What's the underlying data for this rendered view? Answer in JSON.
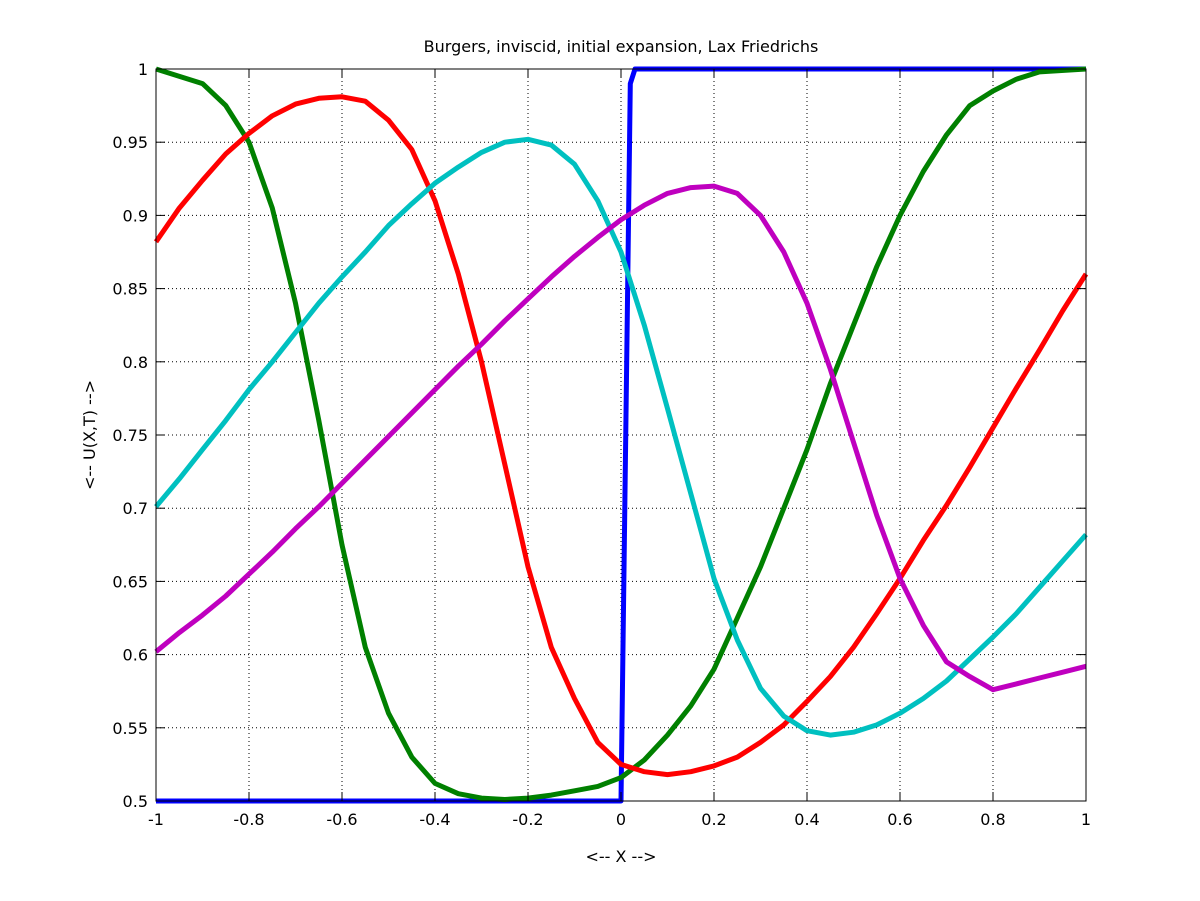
{
  "chart_data": {
    "type": "line",
    "title": "Burgers, inviscid, initial expansion, Lax Friedrichs",
    "xlabel": "<-- X -->",
    "ylabel": "<-- U(X,T) -->",
    "xlim": [
      -1,
      1
    ],
    "ylim": [
      0.5,
      1
    ],
    "xticks": [
      -1,
      -0.8,
      -0.6,
      -0.4,
      -0.2,
      0,
      0.2,
      0.4,
      0.6,
      0.8,
      1
    ],
    "xtick_labels": [
      "-1",
      "-0.8",
      "-0.6",
      "-0.4",
      "-0.2",
      "0",
      "0.2",
      "0.4",
      "0.6",
      "0.8",
      "1"
    ],
    "yticks": [
      0.5,
      0.55,
      0.6,
      0.65,
      0.7,
      0.75,
      0.8,
      0.85,
      0.9,
      0.95,
      1
    ],
    "ytick_labels": [
      "0.5",
      "0.55",
      "0.6",
      "0.65",
      "0.7",
      "0.75",
      "0.8",
      "0.85",
      "0.9",
      "0.95",
      "1"
    ],
    "grid": true,
    "grid_style": "dotted",
    "series": [
      {
        "color": "#0000ff",
        "x": [
          -1,
          -0.01,
          0.0,
          0.02,
          0.03,
          1
        ],
        "y": [
          0.5,
          0.5,
          0.5,
          0.99,
          1.0,
          1.0
        ]
      },
      {
        "color": "#008000",
        "x": [
          -1,
          -0.9,
          -0.85,
          -0.8,
          -0.75,
          -0.7,
          -0.65,
          -0.6,
          -0.55,
          -0.5,
          -0.45,
          -0.4,
          -0.35,
          -0.3,
          -0.25,
          -0.2,
          -0.15,
          -0.1,
          -0.05,
          0,
          0.05,
          0.1,
          0.15,
          0.2,
          0.25,
          0.3,
          0.35,
          0.4,
          0.45,
          0.5,
          0.55,
          0.6,
          0.65,
          0.7,
          0.75,
          0.8,
          0.85,
          0.9,
          1
        ],
        "y": [
          1.0,
          0.99,
          0.975,
          0.95,
          0.905,
          0.84,
          0.76,
          0.675,
          0.605,
          0.56,
          0.53,
          0.512,
          0.505,
          0.502,
          0.501,
          0.502,
          0.504,
          0.507,
          0.51,
          0.516,
          0.528,
          0.545,
          0.565,
          0.59,
          0.625,
          0.66,
          0.7,
          0.74,
          0.785,
          0.825,
          0.865,
          0.9,
          0.93,
          0.955,
          0.975,
          0.985,
          0.993,
          0.998,
          1.0
        ]
      },
      {
        "color": "#ff0000",
        "x": [
          -1,
          -0.95,
          -0.9,
          -0.85,
          -0.8,
          -0.75,
          -0.7,
          -0.65,
          -0.6,
          -0.55,
          -0.5,
          -0.45,
          -0.4,
          -0.35,
          -0.3,
          -0.25,
          -0.2,
          -0.15,
          -0.1,
          -0.05,
          0,
          0.05,
          0.1,
          0.15,
          0.2,
          0.25,
          0.3,
          0.35,
          0.4,
          0.45,
          0.5,
          0.55,
          0.6,
          0.65,
          0.7,
          0.75,
          0.8,
          0.85,
          0.9,
          0.95,
          1
        ],
        "y": [
          0.882,
          0.905,
          0.924,
          0.942,
          0.956,
          0.968,
          0.976,
          0.98,
          0.981,
          0.978,
          0.965,
          0.945,
          0.91,
          0.86,
          0.8,
          0.73,
          0.66,
          0.605,
          0.57,
          0.54,
          0.525,
          0.52,
          0.518,
          0.52,
          0.524,
          0.53,
          0.54,
          0.552,
          0.568,
          0.585,
          0.605,
          0.628,
          0.652,
          0.678,
          0.702,
          0.728,
          0.755,
          0.782,
          0.808,
          0.835,
          0.86
        ]
      },
      {
        "color": "#00c0c0",
        "x": [
          -1,
          -0.95,
          -0.9,
          -0.85,
          -0.8,
          -0.75,
          -0.7,
          -0.65,
          -0.6,
          -0.55,
          -0.5,
          -0.45,
          -0.4,
          -0.35,
          -0.3,
          -0.25,
          -0.2,
          -0.15,
          -0.1,
          -0.05,
          0,
          0.05,
          0.1,
          0.15,
          0.2,
          0.25,
          0.3,
          0.35,
          0.4,
          0.45,
          0.5,
          0.55,
          0.6,
          0.65,
          0.7,
          0.75,
          0.8,
          0.85,
          0.9,
          0.95,
          1
        ],
        "y": [
          0.701,
          0.72,
          0.74,
          0.76,
          0.781,
          0.8,
          0.82,
          0.84,
          0.858,
          0.875,
          0.893,
          0.908,
          0.922,
          0.933,
          0.943,
          0.95,
          0.952,
          0.948,
          0.935,
          0.91,
          0.875,
          0.825,
          0.768,
          0.71,
          0.652,
          0.61,
          0.577,
          0.558,
          0.548,
          0.545,
          0.547,
          0.552,
          0.56,
          0.57,
          0.582,
          0.597,
          0.612,
          0.628,
          0.646,
          0.664,
          0.682
        ]
      },
      {
        "color": "#bf00bf",
        "x": [
          -1,
          -0.95,
          -0.9,
          -0.85,
          -0.8,
          -0.75,
          -0.7,
          -0.65,
          -0.6,
          -0.55,
          -0.5,
          -0.45,
          -0.4,
          -0.35,
          -0.3,
          -0.25,
          -0.2,
          -0.15,
          -0.1,
          -0.05,
          0,
          0.05,
          0.1,
          0.15,
          0.2,
          0.25,
          0.3,
          0.35,
          0.4,
          0.45,
          0.5,
          0.55,
          0.6,
          0.65,
          0.7,
          0.75,
          0.8,
          0.85,
          0.9,
          0.95,
          1
        ],
        "y": [
          0.602,
          0.615,
          0.627,
          0.64,
          0.655,
          0.67,
          0.686,
          0.701,
          0.717,
          0.733,
          0.749,
          0.765,
          0.781,
          0.797,
          0.812,
          0.828,
          0.843,
          0.858,
          0.872,
          0.885,
          0.897,
          0.907,
          0.915,
          0.919,
          0.92,
          0.915,
          0.9,
          0.875,
          0.84,
          0.795,
          0.745,
          0.695,
          0.652,
          0.62,
          0.595,
          0.585,
          0.576,
          0.58,
          0.584,
          0.588,
          0.592
        ]
      }
    ]
  }
}
